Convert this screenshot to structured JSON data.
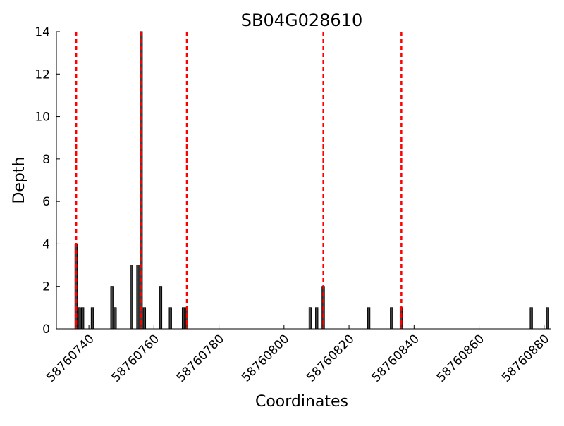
{
  "chart_data": {
    "type": "bar",
    "title": "SB04G028610",
    "xlabel": "Coordinates",
    "ylabel": "Depth",
    "xlim": [
      58760730,
      58760882
    ],
    "ylim": [
      0,
      14
    ],
    "x_ticks": [
      58760740,
      58760760,
      58760780,
      58760800,
      58760820,
      58760840,
      58760860,
      58760880
    ],
    "x_tick_labels": [
      "58760740",
      "58760760",
      "58760780",
      "58760800",
      "58760820",
      "58760840",
      "58760860",
      "58760880"
    ],
    "y_ticks": [
      0,
      2,
      4,
      6,
      8,
      10,
      12,
      14
    ],
    "y_tick_labels": [
      "0",
      "2",
      "4",
      "6",
      "8",
      "10",
      "12",
      "14"
    ],
    "grid": false,
    "bars": [
      {
        "x": 58760736,
        "value": 4
      },
      {
        "x": 58760737,
        "value": 1
      },
      {
        "x": 58760738,
        "value": 1
      },
      {
        "x": 58760741,
        "value": 1
      },
      {
        "x": 58760747,
        "value": 2
      },
      {
        "x": 58760748,
        "value": 1
      },
      {
        "x": 58760753,
        "value": 3
      },
      {
        "x": 58760755,
        "value": 3
      },
      {
        "x": 58760756,
        "value": 14
      },
      {
        "x": 58760757,
        "value": 1
      },
      {
        "x": 58760762,
        "value": 2
      },
      {
        "x": 58760765,
        "value": 1
      },
      {
        "x": 58760769,
        "value": 1
      },
      {
        "x": 58760770,
        "value": 1
      },
      {
        "x": 58760808,
        "value": 1
      },
      {
        "x": 58760810,
        "value": 1
      },
      {
        "x": 58760812,
        "value": 2
      },
      {
        "x": 58760826,
        "value": 1
      },
      {
        "x": 58760833,
        "value": 1
      },
      {
        "x": 58760836,
        "value": 1
      },
      {
        "x": 58760876,
        "value": 1
      },
      {
        "x": 58760881,
        "value": 1
      }
    ],
    "boundary_lines": [
      58760736,
      58760756,
      58760770,
      58760812,
      58760836
    ],
    "colors": {
      "bar_fill": "#404040",
      "bar_edge": "#000000",
      "boundary_line": "#ff0000",
      "axis": "#000000"
    }
  }
}
